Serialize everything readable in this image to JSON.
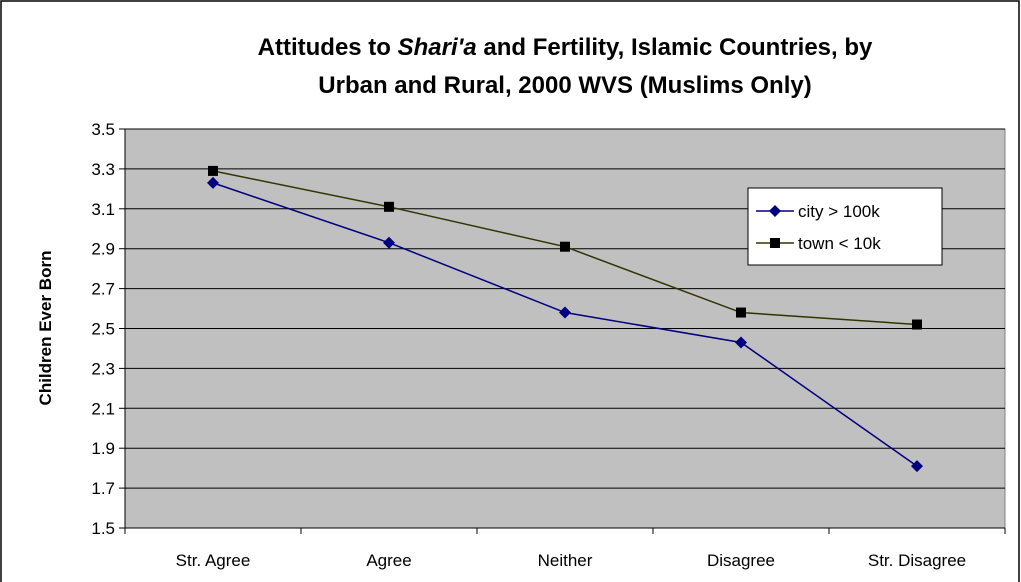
{
  "chart_data": {
    "type": "line",
    "title": [
      "Attitudes to ",
      "Shari'a",
      " and Fertility, Islamic Countries, by",
      "Urban and Rural, 2000 WVS (Muslims Only)"
    ],
    "y_label": "Children Ever Born",
    "categories": [
      "Str. Agree",
      "Agree",
      "Neither",
      "Disagree",
      "Str. Disagree"
    ],
    "series": [
      {
        "name": "city > 100k",
        "color": "#000080",
        "marker": "diamond",
        "values": [
          3.23,
          2.93,
          2.58,
          2.43,
          1.81
        ]
      },
      {
        "name": "town < 10k",
        "color": "#333300",
        "marker": "square",
        "values": [
          3.29,
          3.11,
          2.91,
          2.58,
          2.52
        ]
      }
    ],
    "ylim": [
      1.5,
      3.5
    ],
    "yticks": [
      1.5,
      1.7,
      1.9,
      2.1,
      2.3,
      2.5,
      2.7,
      2.9,
      3.1,
      3.3,
      3.5
    ],
    "grid": true,
    "legend": "upper right"
  }
}
